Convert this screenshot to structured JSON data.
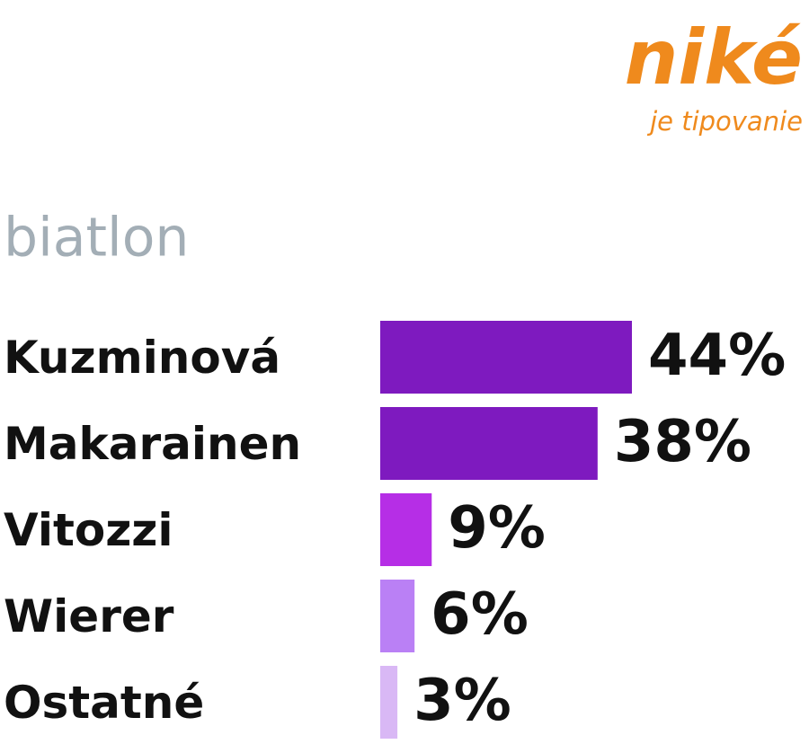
{
  "chart_data": {
    "type": "hbar",
    "title": "biatlon",
    "logo": {
      "name": "niké",
      "tagline": "je tipovanie",
      "color": "#ef8a1d"
    },
    "categories": [
      "Kuzminová",
      "Makarainen",
      "Vitozzi",
      "Wierer",
      "Ostatné"
    ],
    "values": [
      44,
      38,
      9,
      6,
      3
    ],
    "value_labels": [
      "44%",
      "38%",
      "9%",
      "6%",
      "3%"
    ],
    "colors": [
      "#7e1abf",
      "#7e1abf",
      "#b62ee6",
      "#ba80f5",
      "#d9b8f5"
    ]
  }
}
